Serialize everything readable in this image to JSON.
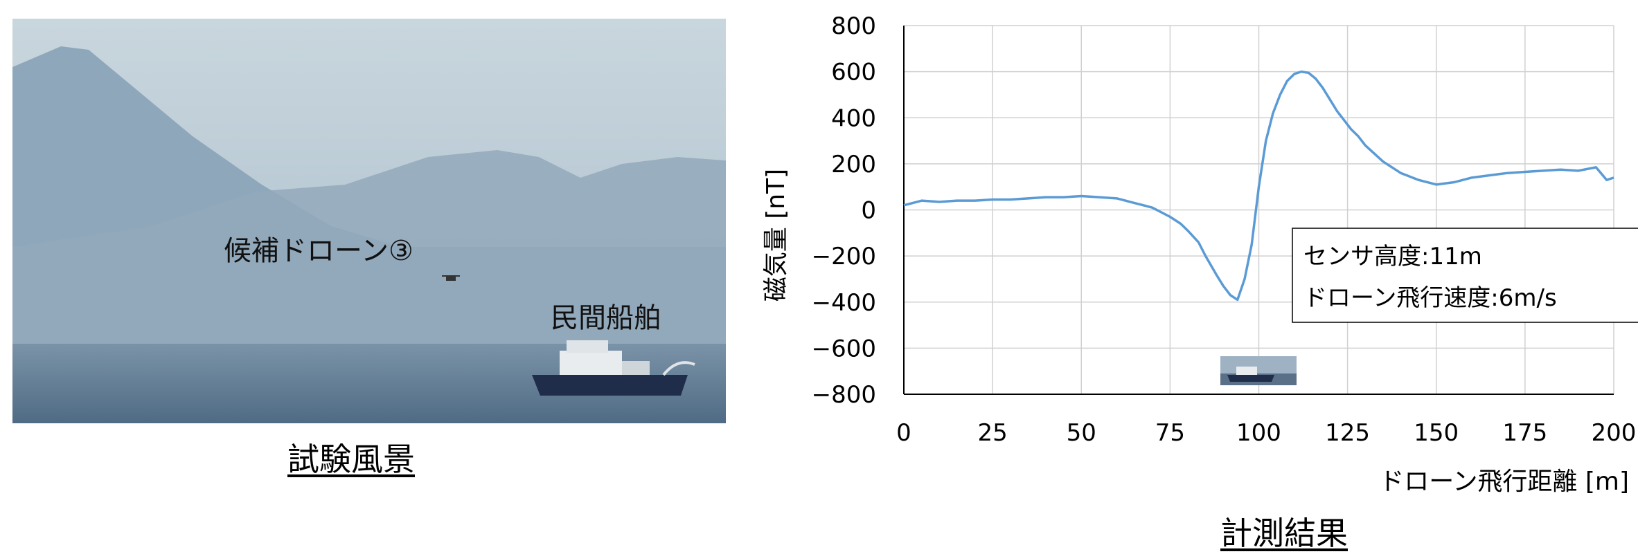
{
  "photo": {
    "caption": "試験風景",
    "label_drone": "候補ドローン③",
    "label_ship": "民間船舶"
  },
  "chart_caption": "計測結果",
  "chart_data": {
    "type": "line",
    "xlabel": "ドローン飛行距離 [m]",
    "ylabel": "磁気量 [nT]",
    "xlim": [
      0,
      200
    ],
    "ylim": [
      -800,
      800
    ],
    "xticks": [
      0,
      25,
      50,
      75,
      100,
      125,
      150,
      175,
      200
    ],
    "yticks": [
      800,
      600,
      400,
      200,
      0,
      -200,
      -400,
      -600,
      -800
    ],
    "ytick_labels": [
      "800",
      "600",
      "400",
      "200",
      "0",
      "−200",
      "−400",
      "−600",
      "−800"
    ],
    "grid": true,
    "line_color": "#5B9BD5",
    "annotation": [
      "センサ高度:11m",
      "ドローン飛行速度:6m/s"
    ],
    "series": [
      {
        "x": [
          0,
          5,
          10,
          15,
          20,
          25,
          30,
          35,
          40,
          45,
          50,
          55,
          60,
          65,
          70,
          75,
          78,
          80,
          83,
          85,
          88,
          90,
          92,
          94,
          96,
          98,
          100,
          102,
          104,
          106,
          108,
          110,
          112,
          114,
          116,
          118,
          120,
          122,
          124,
          126,
          128,
          130,
          135,
          140,
          145,
          150,
          155,
          160,
          165,
          170,
          175,
          180,
          185,
          190,
          195,
          198,
          200
        ],
        "y": [
          20,
          40,
          35,
          40,
          40,
          45,
          45,
          50,
          55,
          55,
          60,
          55,
          50,
          30,
          10,
          -30,
          -60,
          -90,
          -140,
          -200,
          -280,
          -330,
          -370,
          -390,
          -300,
          -150,
          100,
          300,
          420,
          500,
          560,
          590,
          600,
          595,
          570,
          530,
          480,
          430,
          390,
          350,
          320,
          280,
          210,
          160,
          130,
          110,
          120,
          140,
          150,
          160,
          165,
          170,
          175,
          170,
          185,
          130,
          140
        ]
      }
    ]
  }
}
